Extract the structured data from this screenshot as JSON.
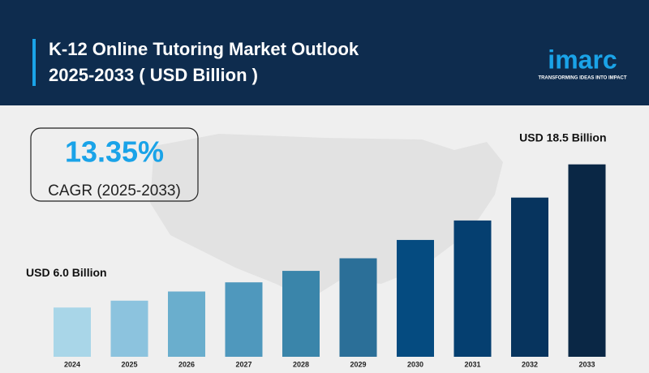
{
  "header": {
    "title_lines": [
      "K-12 Online Tutoring Market Outlook",
      "2025-2033 ( USD Billion )"
    ],
    "logo": "imarc",
    "tagline": "TRANSFORMING IDEAS INTO IMPACT"
  },
  "chart_data": {
    "type": "bar",
    "categories": [
      "2024",
      "2025",
      "2026",
      "2027",
      "2028",
      "2029",
      "2030",
      "2031",
      "2032",
      "2033"
    ],
    "values": [
      6.0,
      6.6,
      7.4,
      8.2,
      9.2,
      10.3,
      11.9,
      13.6,
      15.6,
      18.5
    ],
    "value_labels": [
      "USD 6.0 Billion",
      null,
      null,
      null,
      null,
      null,
      null,
      null,
      null,
      "USD 18.5 Billion"
    ],
    "colors": [
      "#a9d6e8",
      "#8cc3de",
      "#6aaecd",
      "#4f98bd",
      "#3a85aa",
      "#2b6f98",
      "#054b80",
      "#053f70",
      "#07345e",
      "#0a2745"
    ],
    "ylim": [
      1.7,
      19.4
    ],
    "annotations": {
      "cagr_value": "13.35%",
      "cagr_label": "CAGR (2025-2033)"
    }
  }
}
